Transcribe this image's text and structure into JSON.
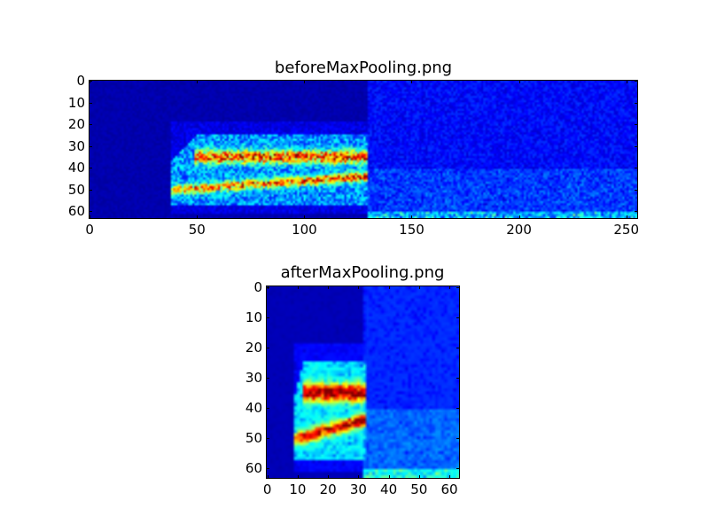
{
  "chart_data": [
    {
      "type": "heatmap",
      "title": "beforeMaxPooling.png",
      "colormap": "jet",
      "shape": [
        64,
        256
      ],
      "xlim": [
        -0.5,
        255.5
      ],
      "ylim": [
        63.5,
        -0.5
      ],
      "xticks": [
        0,
        50,
        100,
        150,
        200,
        250
      ],
      "yticks": [
        0,
        10,
        20,
        30,
        40,
        50,
        60
      ],
      "grid": false
    },
    {
      "type": "heatmap",
      "title": "afterMaxPooling.png",
      "colormap": "jet",
      "shape": [
        64,
        64
      ],
      "xlim": [
        -0.5,
        63.5
      ],
      "ylim": [
        63.5,
        -0.5
      ],
      "xticks": [
        0,
        10,
        20,
        30,
        40,
        50,
        60
      ],
      "yticks": [
        0,
        10,
        20,
        30,
        40,
        50,
        60
      ],
      "grid": false
    }
  ]
}
